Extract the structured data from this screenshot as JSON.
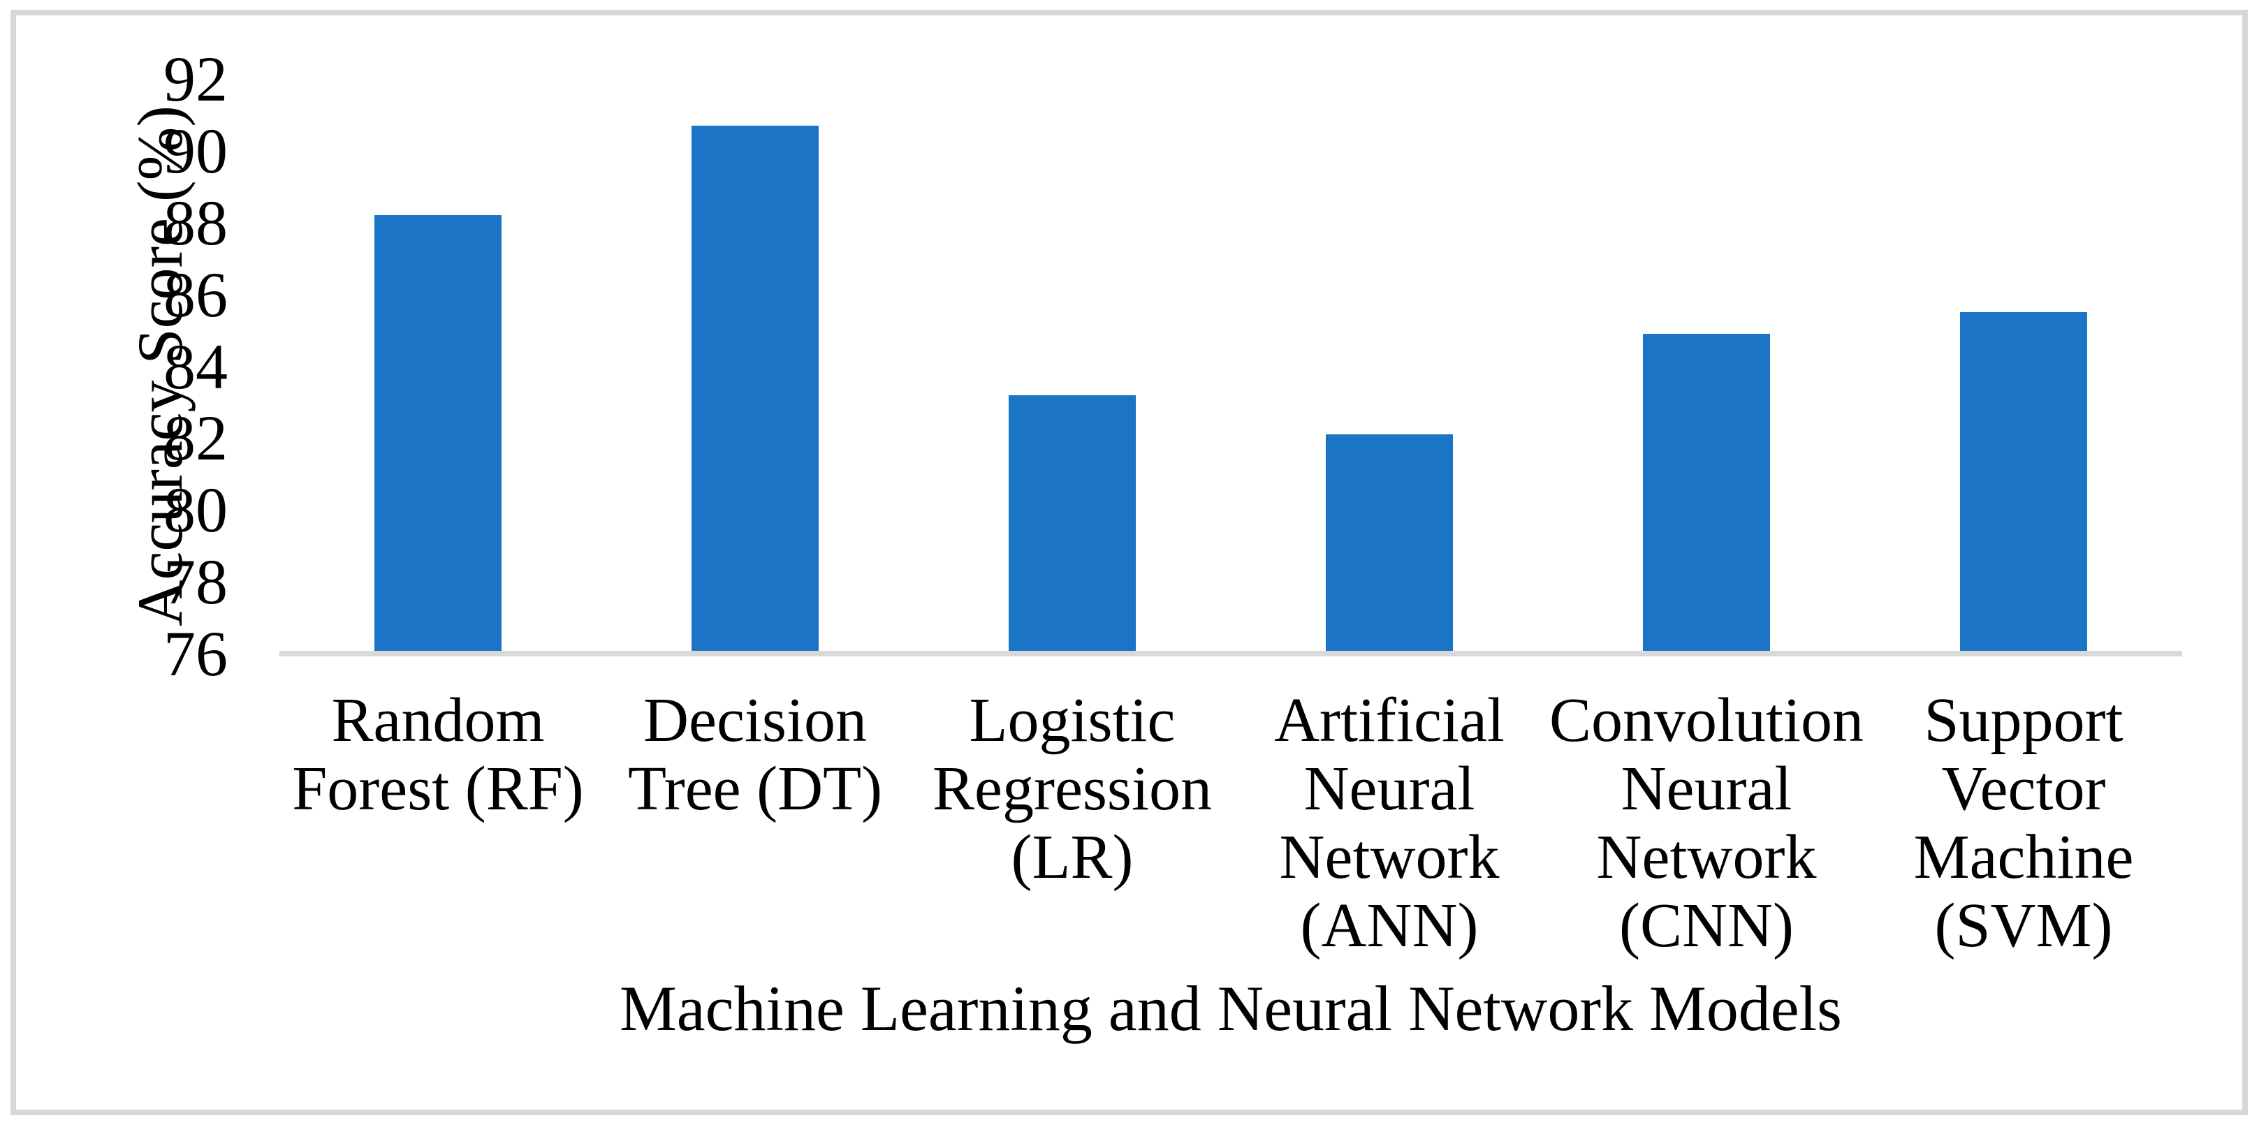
{
  "figure": {
    "background": "#FFFFFF",
    "frame_border_color": "#D7D7D7"
  },
  "chart_data": {
    "type": "bar",
    "title": "",
    "xlabel": "Machine Learning and Neural Network Models",
    "ylabel": "Accuracy Score (%)",
    "categories": [
      "Random Forest (RF)",
      "Decision Tree (DT)",
      "Logistic Regression (LR)",
      "Artificial Neural Network (ANN)",
      "Convolution Neural Network (CNN)",
      "Support Vector Machine (SVM)"
    ],
    "category_label_lines": [
      [
        "Random",
        "Forest (RF)"
      ],
      [
        "Decision",
        "Tree (DT)"
      ],
      [
        "Logistic",
        "Regression",
        "(LR)"
      ],
      [
        "Artificial",
        "Neural",
        "Network",
        "(ANN)"
      ],
      [
        "Convolution",
        "Neural",
        "Network",
        "(CNN)"
      ],
      [
        "Support",
        "Vector",
        "Machine",
        "(SVM)"
      ]
    ],
    "values": [
      88.2,
      90.7,
      83.2,
      82.1,
      84.9,
      85.5
    ],
    "ylim": [
      76,
      92
    ],
    "yticks": [
      76,
      78,
      80,
      82,
      84,
      86,
      88,
      90,
      92
    ],
    "ytick_step": 2,
    "grid": false,
    "legend": "none",
    "bar_color": "#1B74C6",
    "axis_line_color": "#D9D9D9",
    "text_color": "#000000"
  }
}
